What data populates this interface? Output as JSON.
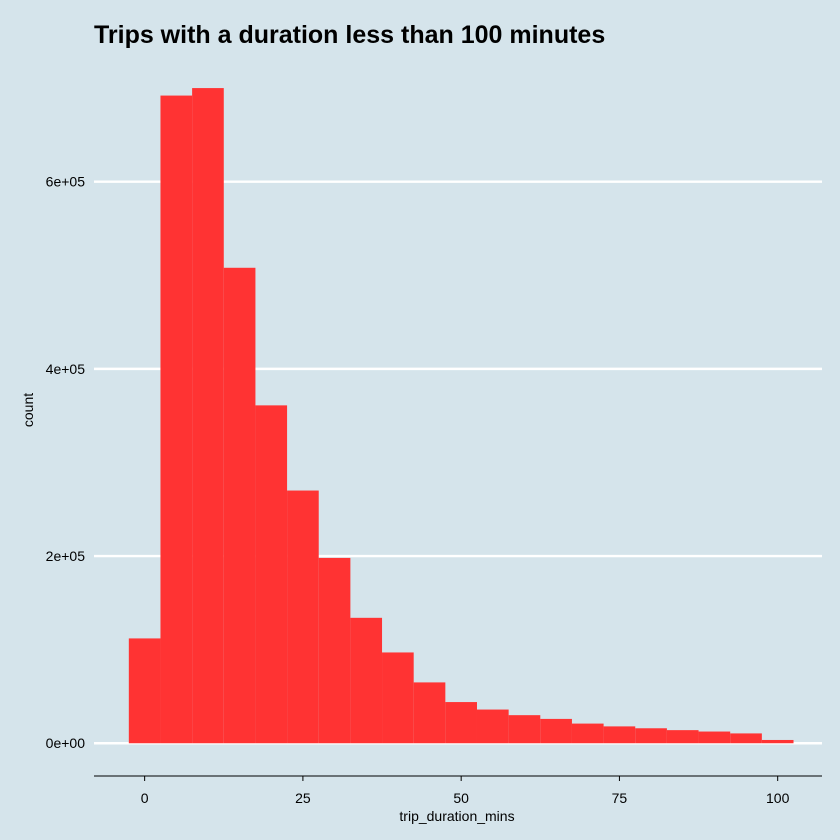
{
  "chart_data": {
    "type": "bar",
    "title": "Trips with a duration less than 100 minutes",
    "xlabel": "trip_duration_mins",
    "ylabel": "count",
    "bin_width": 5,
    "bins": [
      {
        "x0": -2.5,
        "x1": 2.5,
        "count": 112000
      },
      {
        "x0": 2.5,
        "x1": 7.5,
        "count": 692000
      },
      {
        "x0": 7.5,
        "x1": 12.5,
        "count": 700000
      },
      {
        "x0": 12.5,
        "x1": 17.5,
        "count": 508000
      },
      {
        "x0": 17.5,
        "x1": 22.5,
        "count": 361000
      },
      {
        "x0": 22.5,
        "x1": 27.5,
        "count": 270000
      },
      {
        "x0": 27.5,
        "x1": 32.5,
        "count": 198000
      },
      {
        "x0": 32.5,
        "x1": 37.5,
        "count": 134000
      },
      {
        "x0": 37.5,
        "x1": 42.5,
        "count": 97000
      },
      {
        "x0": 42.5,
        "x1": 47.5,
        "count": 65000
      },
      {
        "x0": 47.5,
        "x1": 52.5,
        "count": 44000
      },
      {
        "x0": 52.5,
        "x1": 57.5,
        "count": 36000
      },
      {
        "x0": 57.5,
        "x1": 62.5,
        "count": 30000
      },
      {
        "x0": 62.5,
        "x1": 67.5,
        "count": 26000
      },
      {
        "x0": 67.5,
        "x1": 72.5,
        "count": 21000
      },
      {
        "x0": 72.5,
        "x1": 77.5,
        "count": 18000
      },
      {
        "x0": 77.5,
        "x1": 82.5,
        "count": 16000
      },
      {
        "x0": 82.5,
        "x1": 87.5,
        "count": 14000
      },
      {
        "x0": 87.5,
        "x1": 92.5,
        "count": 12500
      },
      {
        "x0": 92.5,
        "x1": 97.5,
        "count": 10500
      },
      {
        "x0": 97.5,
        "x1": 102.5,
        "count": 3500
      }
    ],
    "xlim": [
      -8,
      107
    ],
    "ylim": [
      -35000,
      730000
    ],
    "x_ticks": [
      0,
      25,
      50,
      75,
      100
    ],
    "x_tick_labels": [
      "0",
      "25",
      "50",
      "75",
      "100"
    ],
    "y_ticks": [
      0,
      200000,
      400000,
      600000
    ],
    "y_tick_labels": [
      "0e+00",
      "2e+05",
      "4e+05",
      "6e+05"
    ],
    "grid": "horizontal major",
    "bar_color": "#ff3333",
    "background_color": "#d5e4eb",
    "grid_color": "#ffffff"
  }
}
